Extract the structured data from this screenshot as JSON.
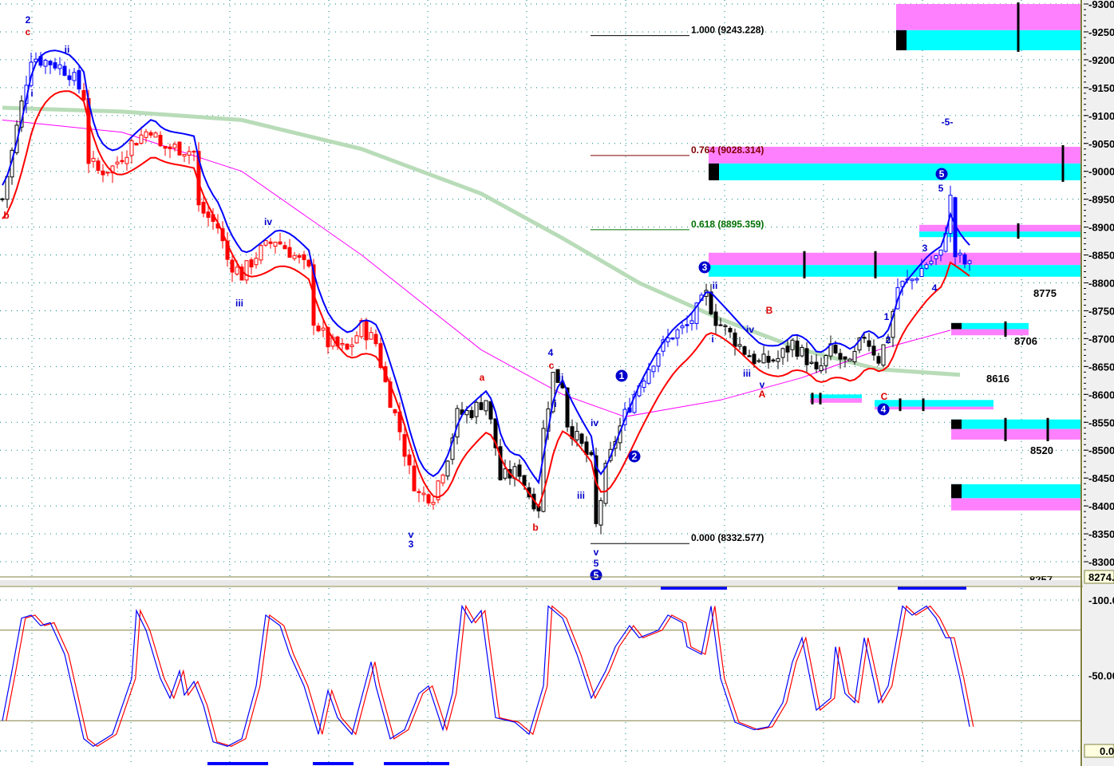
{
  "chart_data": [
    {
      "type": "candlestick",
      "pane": "price",
      "yaxis": {
        "range": [
          8274,
          9300
        ],
        "ticks": [
          "9300",
          "9250",
          "9200",
          "9150",
          "9100",
          "9050",
          "9000",
          "8950",
          "8900",
          "8850",
          "8800",
          "8750",
          "8700",
          "8650",
          "8600",
          "8550",
          "8500",
          "8450",
          "8400",
          "8350",
          "8300"
        ],
        "current_value": "8274."
      },
      "grid": true,
      "close_path": [
        [
          0,
          8950
        ],
        [
          2,
          9035
        ],
        [
          4,
          9121
        ],
        [
          6,
          9207
        ],
        [
          8,
          9200
        ],
        [
          11,
          9193
        ],
        [
          14,
          9178
        ],
        [
          17,
          9135
        ],
        [
          18,
          9021
        ],
        [
          20,
          9000
        ],
        [
          23,
          9007
        ],
        [
          27,
          9050
        ],
        [
          31,
          9078
        ],
        [
          33,
          9042
        ],
        [
          37,
          9042
        ],
        [
          40,
          9035
        ],
        [
          41,
          8935
        ],
        [
          45,
          8900
        ],
        [
          47,
          8842
        ],
        [
          50,
          8814
        ],
        [
          53,
          8850
        ],
        [
          57,
          8878
        ],
        [
          60,
          8857
        ],
        [
          64,
          8821
        ],
        [
          65,
          8735
        ],
        [
          68,
          8692
        ],
        [
          72,
          8678
        ],
        [
          75,
          8721
        ],
        [
          78,
          8692
        ],
        [
          80,
          8620
        ],
        [
          83,
          8535
        ],
        [
          85,
          8463
        ],
        [
          87,
          8420
        ],
        [
          90,
          8420
        ],
        [
          93,
          8492
        ],
        [
          95,
          8563
        ],
        [
          98,
          8570
        ],
        [
          101,
          8592
        ],
        [
          103,
          8506
        ],
        [
          104,
          8449
        ],
        [
          108,
          8463
        ],
        [
          110,
          8420
        ],
        [
          112,
          8399
        ],
        [
          113,
          8535
        ],
        [
          115,
          8635
        ],
        [
          117,
          8620
        ],
        [
          118,
          8549
        ],
        [
          121,
          8506
        ],
        [
          123,
          8478
        ],
        [
          124,
          8363
        ],
        [
          126,
          8463
        ],
        [
          128,
          8520
        ],
        [
          130,
          8563
        ],
        [
          133,
          8620
        ],
        [
          137,
          8678
        ],
        [
          140,
          8707
        ],
        [
          143,
          8721
        ],
        [
          147,
          8778
        ],
        [
          149,
          8735
        ],
        [
          152,
          8707
        ],
        [
          155,
          8678
        ],
        [
          158,
          8656
        ],
        [
          162,
          8664
        ],
        [
          165,
          8692
        ],
        [
          168,
          8664
        ],
        [
          170,
          8635
        ],
        [
          173,
          8678
        ],
        [
          177,
          8649
        ],
        [
          180,
          8707
        ],
        [
          183,
          8664
        ],
        [
          185,
          8707
        ],
        [
          187,
          8792
        ],
        [
          190,
          8806
        ],
        [
          193,
          8835
        ],
        [
          196,
          8849
        ],
        [
          198,
          8950
        ],
        [
          199,
          8849
        ],
        [
          202,
          8828
        ]
      ],
      "moving_average_slow_green": [
        [
          0,
          9114
        ],
        [
          25,
          9107
        ],
        [
          50,
          9092
        ],
        [
          75,
          9040
        ],
        [
          100,
          8960
        ],
        [
          117,
          8880
        ],
        [
          133,
          8800
        ],
        [
          150,
          8735
        ],
        [
          167,
          8680
        ],
        [
          183,
          8645
        ],
        [
          200,
          8635
        ]
      ],
      "moving_average_magenta": [
        [
          0,
          9092
        ],
        [
          25,
          9070
        ],
        [
          50,
          9000
        ],
        [
          75,
          8850
        ],
        [
          100,
          8680
        ],
        [
          117,
          8600
        ],
        [
          130,
          8560
        ],
        [
          150,
          8590
        ],
        [
          167,
          8630
        ],
        [
          183,
          8680
        ],
        [
          198,
          8715
        ]
      ],
      "fib_levels": [
        {
          "ratio": "1.000",
          "value": "(9243.228)",
          "price": 9243.228,
          "color": "#000000"
        },
        {
          "ratio": "0.764",
          "value": "(9028.314)",
          "price": 9028.314,
          "color": "#800000"
        },
        {
          "ratio": "0.618",
          "value": "(8895.359)",
          "price": 8895.359,
          "color": "#007000"
        },
        {
          "ratio": "0.000",
          "value": "(8332.577)",
          "price": 8332.577,
          "color": "#000000"
        }
      ],
      "zones": [
        {
          "top": 9300,
          "mid": 9253,
          "bottom": 9217,
          "upper_color": "#ff80ff",
          "lower_color": "#00ffff"
        },
        {
          "top": 9044,
          "mid": 9014,
          "bottom": 8984,
          "upper_color": "#ff80ff",
          "lower_color": "#00ffff"
        },
        {
          "top": 8904,
          "mid": 8892,
          "bottom": 8882,
          "upper_color": "#ff80ff",
          "lower_color": "#00ffff"
        },
        {
          "top": 8854,
          "mid": 8832,
          "bottom": 8811,
          "upper_color": "#ff80ff",
          "lower_color": "#00ffff"
        },
        {
          "top": 8728,
          "mid": 8717,
          "bottom": 8706,
          "upper_color": "#00ffff",
          "lower_color": "#ff80ff"
        },
        {
          "top": 8600,
          "mid": 8593,
          "bottom": 8585,
          "upper_color": "#00ffff",
          "lower_color": "#ff80ff"
        },
        {
          "top": 8590,
          "mid": 8578,
          "bottom": 8573,
          "upper_color": "#00ffff",
          "lower_color": "#ff80ff"
        },
        {
          "top": 8555,
          "mid": 8538,
          "bottom": 8519,
          "upper_color": "#00ffff",
          "lower_color": "#ff80ff"
        },
        {
          "top": 8439,
          "mid": 8414,
          "bottom": 8392,
          "upper_color": "#00ffff",
          "lower_color": "#ff80ff"
        }
      ],
      "level_labels": [
        "8775",
        "8706",
        "8616",
        "8520",
        "8257"
      ],
      "wave_labels": [
        {
          "text": "2",
          "color": "#0000cc"
        },
        {
          "text": "c",
          "color": "#dd0000"
        },
        {
          "text": "i",
          "color": "#0000cc"
        },
        {
          "text": "b",
          "color": "#dd0000"
        },
        {
          "text": "ii",
          "color": "#0000cc"
        },
        {
          "text": "iv",
          "color": "#0000cc"
        },
        {
          "text": "iii",
          "color": "#0000cc"
        },
        {
          "text": "a",
          "color": "#dd0000"
        },
        {
          "text": "4",
          "color": "#0000cc"
        },
        {
          "text": "c",
          "color": "#dd0000"
        },
        {
          "text": "ii",
          "color": "#0000cc"
        },
        {
          "text": "i",
          "color": "#0000cc"
        },
        {
          "text": "iii",
          "color": "#0000cc"
        },
        {
          "text": "v",
          "color": "#0000cc"
        },
        {
          "text": "3",
          "color": "#0000cc"
        },
        {
          "text": "b",
          "color": "#dd0000"
        },
        {
          "text": "iv",
          "color": "#0000cc"
        },
        {
          "text": "v",
          "color": "#0000cc"
        },
        {
          "text": "5",
          "color": "#0000cc"
        },
        {
          "text": "ii",
          "color": "#0000cc"
        },
        {
          "text": "i",
          "color": "#0000cc"
        },
        {
          "text": "iv",
          "color": "#0000cc"
        },
        {
          "text": "B",
          "color": "#dd0000"
        },
        {
          "text": "iii",
          "color": "#0000cc"
        },
        {
          "text": "v",
          "color": "#0000cc"
        },
        {
          "text": "A",
          "color": "#dd0000"
        },
        {
          "text": "1",
          "color": "#0000cc"
        },
        {
          "text": "2",
          "color": "#0000cc"
        },
        {
          "text": "C",
          "color": "#dd0000"
        },
        {
          "text": "3",
          "color": "#0000cc"
        },
        {
          "text": "4",
          "color": "#0000cc"
        },
        {
          "text": "5",
          "color": "#0000cc"
        },
        {
          "text": "-5-",
          "color": "#0000cc"
        }
      ],
      "circled_wave_labels": [
        "5",
        "1",
        "2",
        "3",
        "4",
        "5"
      ]
    },
    {
      "type": "line",
      "pane": "oscillator",
      "yaxis": {
        "range": [
          0,
          100
        ],
        "ticks": [
          "100.0",
          "50.00"
        ],
        "current_value": "0.0"
      },
      "reference_lines": [
        80,
        20
      ],
      "series": [
        {
          "color": "#0000ff",
          "values": [
            [
              0,
              20
            ],
            [
              2,
              53
            ],
            [
              4,
              88
            ],
            [
              6,
              90
            ],
            [
              8,
              83
            ],
            [
              10,
              85
            ],
            [
              13,
              64
            ],
            [
              17,
              8
            ],
            [
              19,
              3
            ],
            [
              23,
              11
            ],
            [
              27,
              48
            ],
            [
              28,
              93
            ],
            [
              30,
              80
            ],
            [
              33,
              48
            ],
            [
              35,
              35
            ],
            [
              37,
              53
            ],
            [
              38,
              37
            ],
            [
              40,
              46
            ],
            [
              42,
              30
            ],
            [
              44,
              6
            ],
            [
              47,
              3
            ],
            [
              50,
              8
            ],
            [
              53,
              43
            ],
            [
              55,
              90
            ],
            [
              58,
              83
            ],
            [
              60,
              64
            ],
            [
              63,
              43
            ],
            [
              66,
              11
            ],
            [
              68,
              40
            ],
            [
              70,
              22
            ],
            [
              73,
              11
            ],
            [
              77,
              59
            ],
            [
              78,
              43
            ],
            [
              81,
              8
            ],
            [
              84,
              14
            ],
            [
              87,
              38
            ],
            [
              89,
              43
            ],
            [
              92,
              14
            ],
            [
              94,
              38
            ],
            [
              96,
              96
            ],
            [
              98,
              85
            ],
            [
              100,
              93
            ],
            [
              103,
              22
            ],
            [
              107,
              19
            ],
            [
              110,
              11
            ],
            [
              113,
              43
            ],
            [
              114,
              96
            ],
            [
              117,
              88
            ],
            [
              120,
              64
            ],
            [
              123,
              35
            ],
            [
              126,
              53
            ],
            [
              128,
              69
            ],
            [
              131,
              83
            ],
            [
              133,
              75
            ],
            [
              137,
              80
            ],
            [
              139,
              90
            ],
            [
              142,
              85
            ],
            [
              143,
              69
            ],
            [
              146,
              64
            ],
            [
              148,
              96
            ],
            [
              150,
              48
            ],
            [
              153,
              19
            ],
            [
              157,
              14
            ],
            [
              160,
              16
            ],
            [
              163,
              32
            ],
            [
              165,
              59
            ],
            [
              167,
              75
            ],
            [
              168,
              59
            ],
            [
              170,
              27
            ],
            [
              173,
              35
            ],
            [
              174,
              69
            ],
            [
              176,
              38
            ],
            [
              178,
              32
            ],
            [
              180,
              75
            ],
            [
              183,
              32
            ],
            [
              185,
              43
            ],
            [
              188,
              96
            ],
            [
              190,
              90
            ],
            [
              193,
              96
            ],
            [
              195,
              88
            ],
            [
              197,
              75
            ],
            [
              198,
              75
            ],
            [
              200,
              48
            ],
            [
              202,
              16
            ]
          ]
        },
        {
          "color": "#ff0000",
          "lag": true
        }
      ]
    }
  ]
}
